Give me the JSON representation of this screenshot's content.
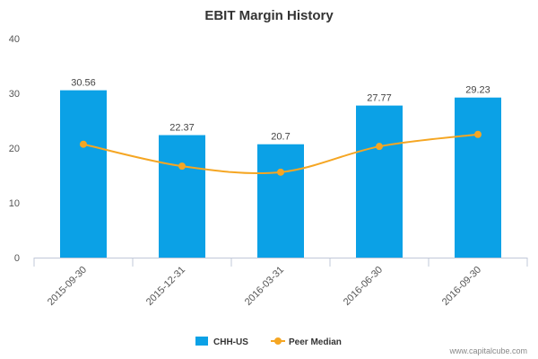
{
  "chart_data": {
    "type": "bar",
    "title": "EBIT Margin History",
    "categories": [
      "2015-09-30",
      "2015-12-31",
      "2016-03-31",
      "2016-06-30",
      "2016-09-30"
    ],
    "series": [
      {
        "name": "CHH-US",
        "type": "bar",
        "color": "#0ba1e6",
        "values": [
          30.56,
          22.37,
          20.7,
          27.77,
          29.23
        ],
        "data_labels": [
          "30.56",
          "22.37",
          "20.7",
          "27.77",
          "29.23"
        ]
      },
      {
        "name": "Peer Median",
        "type": "line",
        "color": "#f5a623",
        "values": [
          20.7,
          16.7,
          15.6,
          20.3,
          22.5
        ]
      }
    ],
    "ylim": [
      0,
      40
    ],
    "yticks": [
      "0",
      "10",
      "20",
      "30",
      "40"
    ],
    "grid": false,
    "legend": "bottom-center"
  },
  "credit": "www.capitalcube.com"
}
